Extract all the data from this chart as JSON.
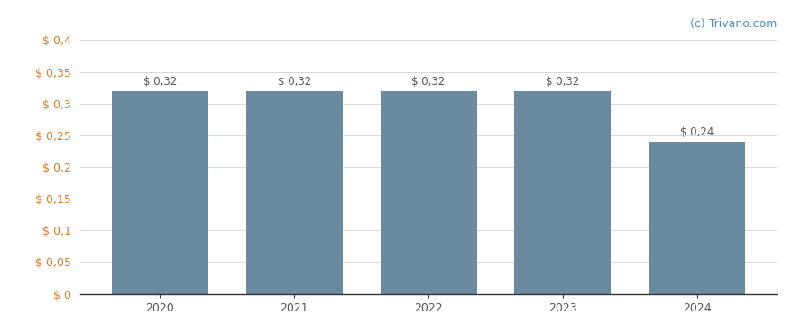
{
  "categories": [
    "2020",
    "2021",
    "2022",
    "2023",
    "2024"
  ],
  "values": [
    0.32,
    0.32,
    0.32,
    0.32,
    0.24
  ],
  "bar_color": "#6a8a9f",
  "bar_labels": [
    "$ 0,32",
    "$ 0,32",
    "$ 0,32",
    "$ 0,32",
    "$ 0,24"
  ],
  "ylim": [
    0,
    0.4
  ],
  "yticks": [
    0,
    0.05,
    0.1,
    0.15,
    0.2,
    0.25,
    0.3,
    0.35,
    0.4
  ],
  "ytick_labels": [
    "$ 0",
    "$ 0,05",
    "$ 0,1",
    "$ 0,15",
    "$ 0,2",
    "$ 0,25",
    "$ 0,3",
    "$ 0,35",
    "$ 0,4"
  ],
  "background_color": "#ffffff",
  "watermark": "(c) Trivano.com",
  "bar_label_fontsize": 8.5,
  "tick_fontsize": 9,
  "ytick_color": "#e07820",
  "xtick_color": "#555555",
  "watermark_fontsize": 9,
  "watermark_color": "#4a90c4",
  "bar_width": 0.72,
  "grid_color": "#d8d8d8",
  "label_color": "#555555"
}
